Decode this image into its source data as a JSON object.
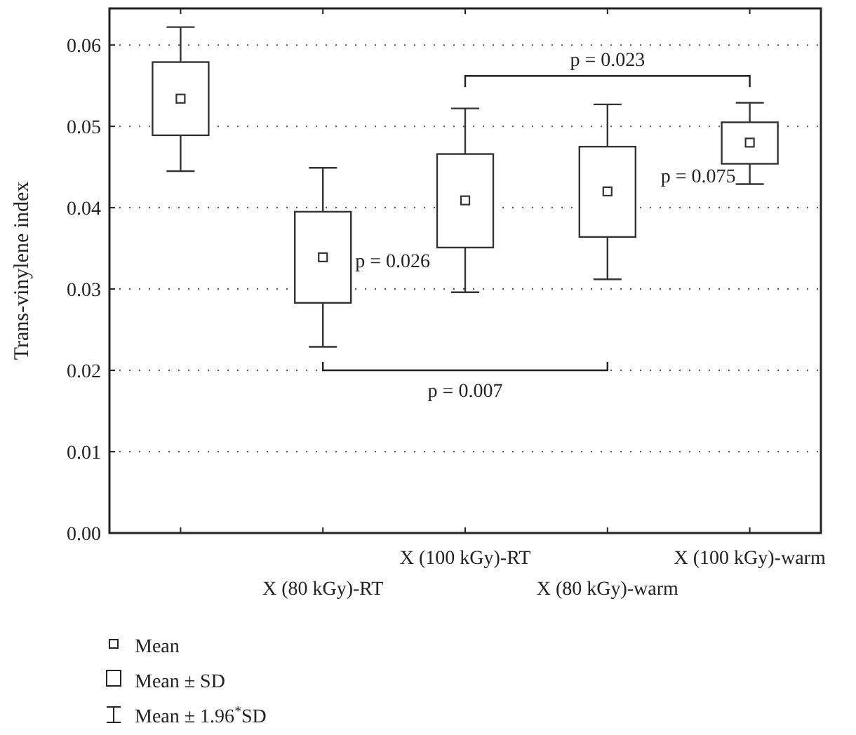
{
  "chart_data": {
    "type": "box",
    "ylabel": "Trans-vinylene index",
    "categories": [
      null,
      "X (80 kGy)-RT",
      "X (100 kGy)-RT",
      "X (80 kGy)-warm",
      "X (100 kGy)-warm"
    ],
    "boxes": [
      {
        "low": 0.0445,
        "q1": 0.0489,
        "median": 0.0534,
        "q3": 0.0579,
        "high": 0.0622
      },
      {
        "low": 0.0229,
        "q1": 0.0283,
        "median": 0.0339,
        "q3": 0.0395,
        "high": 0.0449
      },
      {
        "low": 0.0296,
        "q1": 0.0351,
        "median": 0.0409,
        "q3": 0.0466,
        "high": 0.0522
      },
      {
        "low": 0.0312,
        "q1": 0.0364,
        "median": 0.042,
        "q3": 0.0475,
        "high": 0.0527
      },
      {
        "low": 0.0429,
        "q1": 0.0454,
        "median": 0.048,
        "q3": 0.0505,
        "high": 0.0529
      }
    ],
    "ylim": [
      0,
      0.0645
    ],
    "yticks": [
      {
        "value": 0,
        "label": "0.00"
      },
      {
        "value": 0.01,
        "label": "0.01"
      },
      {
        "value": 0.02,
        "label": "0.02"
      },
      {
        "value": 0.03,
        "label": "0.03"
      },
      {
        "value": 0.04,
        "label": "0.04"
      },
      {
        "value": 0.05,
        "label": "0.05"
      },
      {
        "value": 0.06,
        "label": "0.06"
      }
    ],
    "grid": "y",
    "color": "#333333",
    "annotations": [
      "p = 0.026",
      "p = 0.023",
      "p = 0.007",
      "p = 0.075",
      "Mean",
      "Mean ± SD",
      "Mean ± 1.96$^{*}$SD"
    ]
  }
}
